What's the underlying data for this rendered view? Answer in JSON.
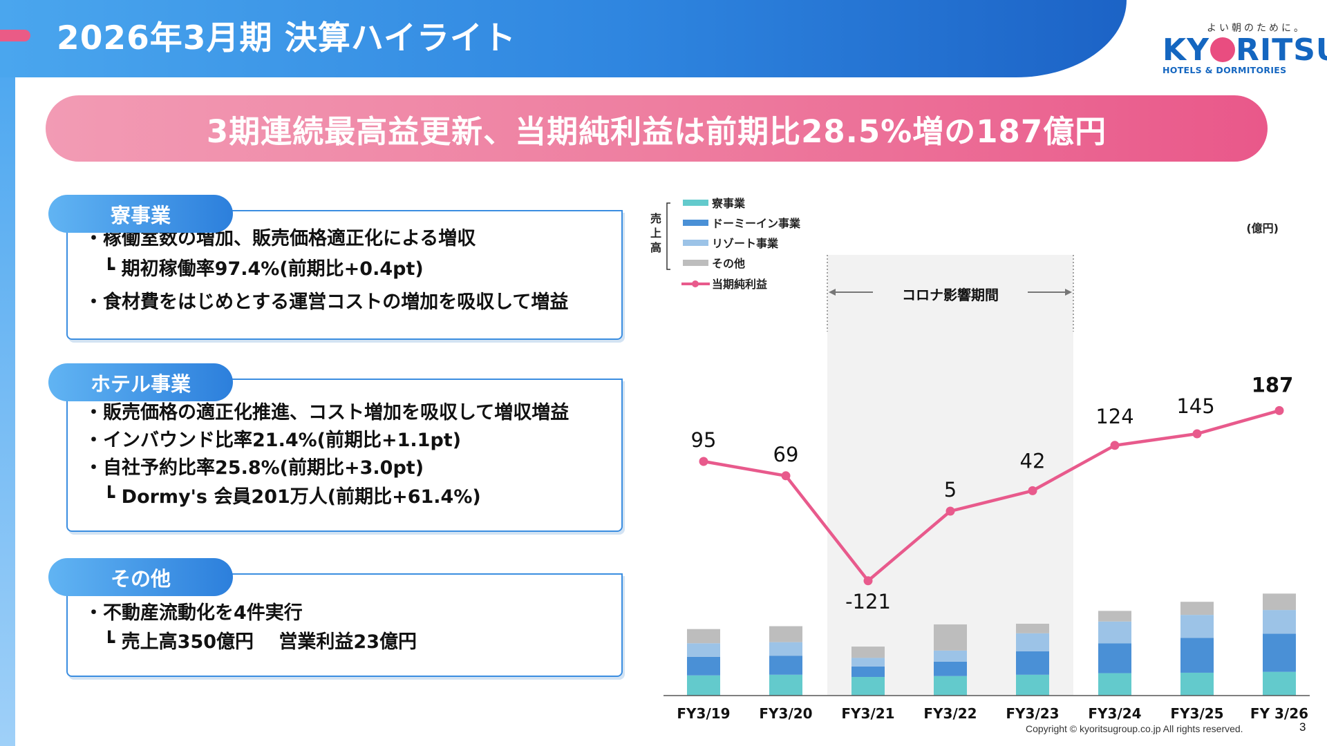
{
  "header": {
    "title": "2026年3月期 決算ハイライト",
    "accent_colors": {
      "band_start": "#4aa6ee",
      "band_end": "#1c63c6",
      "pink": "#ea5b86"
    }
  },
  "logo": {
    "tagline": "よい朝のために。",
    "word_left": "KY",
    "word_right": "RITSU",
    "subtitle": "HOTELS & DORMITORIES"
  },
  "headline": "3期連続最高益更新、当期純利益は前期比28.5%増の187億円",
  "sections": [
    {
      "title": "寮事業",
      "bullets": [
        {
          "text": "・稼働室数の増加、販売価格適正化による増収",
          "sub": false
        },
        {
          "text": "┗ 期初稼働率97.4%(前期比+0.4pt)",
          "sub": true
        },
        {
          "text": "・食材費をはじめとする運営コストの増加を吸収して増益",
          "sub": false
        }
      ]
    },
    {
      "title": "ホテル事業",
      "bullets": [
        {
          "text": "・販売価格の適正化推進、コスト増加を吸収して増収増益",
          "sub": false
        },
        {
          "text": "・インバウンド比率21.4%(前期比+1.1pt)",
          "sub": false
        },
        {
          "text": "・自社予約比率25.8%(前期比+3.0pt)",
          "sub": false
        },
        {
          "text": "┗ Dormy's 会員201万人(前期比+61.4%)",
          "sub": true
        }
      ]
    },
    {
      "title": "その他",
      "bullets": [
        {
          "text": "・不動産流動化を4件実行",
          "sub": false
        },
        {
          "text": "┗ 売上高350億円　 営業利益23億円",
          "sub": true
        }
      ]
    }
  ],
  "chart_data": {
    "type": "bar",
    "stacked": true,
    "combined_with": "line",
    "unit_label": "(億円)",
    "sales_group_label": "売上高",
    "categories": [
      "FY3/19",
      "FY3/20",
      "FY3/21",
      "FY3/22",
      "FY3/23",
      "FY3/24",
      "FY3/25",
      "FY 3/26"
    ],
    "series": [
      {
        "name": "寮事業",
        "color": "#63cacc",
        "values": [
          91,
          94,
          84,
          88,
          94,
          101,
          103,
          107
        ]
      },
      {
        "name": "ドーミーイン事業",
        "color": "#4a90d6",
        "values": [
          84,
          86,
          47,
          65,
          106,
          135,
          157,
          172
        ]
      },
      {
        "name": "リゾート事業",
        "color": "#9cc3e7",
        "values": [
          61,
          61,
          39,
          50,
          81,
          98,
          104,
          107
        ]
      },
      {
        "name": "その他",
        "color": "#bdbdbd",
        "values": [
          64,
          72,
          51,
          118,
          43,
          48,
          59,
          74
        ]
      }
    ],
    "line_series": {
      "name": "当期純利益",
      "color": "#e85a8c",
      "values": [
        95,
        69,
        -121,
        5,
        42,
        124,
        145,
        187
      ]
    },
    "highlight": {
      "label": "コロナ影響期間",
      "from": "FY3/21",
      "to": "FY3/23"
    },
    "xlabel": "",
    "ylabel": ""
  },
  "footer": {
    "copyright": "Copyright © kyoritsugroup.co.jp All rights reserved.",
    "page_number": "3"
  }
}
